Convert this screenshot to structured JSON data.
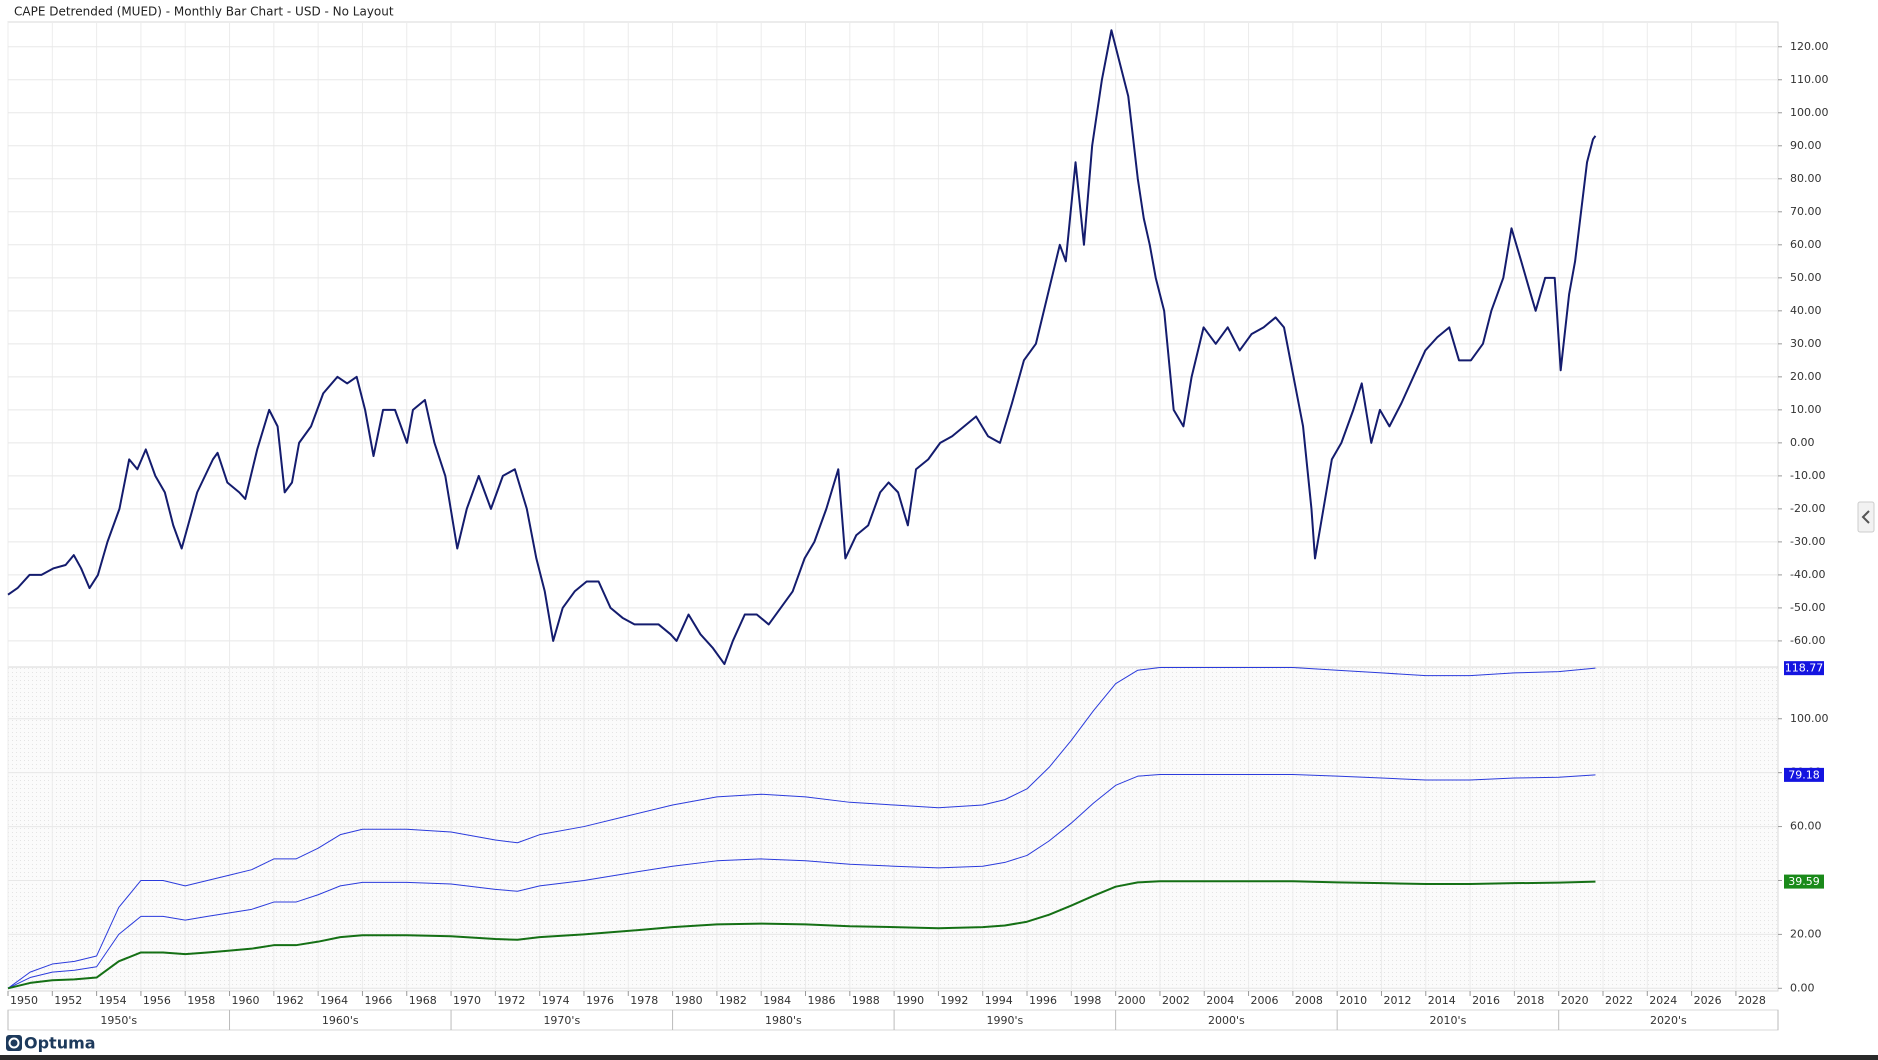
{
  "chart_data": [
    {
      "type": "line",
      "title": "CAPE Detrended (MUED) - Monthly Bar Chart - USD - No Layout",
      "xlim": [
        1950,
        2029.9
      ],
      "ylim": [
        -67.9,
        127.5
      ],
      "grid": true,
      "yticks": [
        {
          "value": -60,
          "label": "-60.00"
        },
        {
          "value": -50,
          "label": "-50.00"
        },
        {
          "value": -40,
          "label": "-40.00"
        },
        {
          "value": -30,
          "label": "-30.00"
        },
        {
          "value": -20,
          "label": "-20.00"
        },
        {
          "value": -10,
          "label": "-10.00"
        },
        {
          "value": 0,
          "label": "0.00"
        },
        {
          "value": 10,
          "label": "10.00"
        },
        {
          "value": 20,
          "label": "20.00"
        },
        {
          "value": 30,
          "label": "30.00"
        },
        {
          "value": 40,
          "label": "40.00"
        },
        {
          "value": 50,
          "label": "50.00"
        },
        {
          "value": 60,
          "label": "60.00"
        },
        {
          "value": 70,
          "label": "70.00"
        },
        {
          "value": 80,
          "label": "80.00"
        },
        {
          "value": 90,
          "label": "90.00"
        },
        {
          "value": 100,
          "label": "100.00"
        },
        {
          "value": 110,
          "label": "110.00"
        },
        {
          "value": 120,
          "label": "120.00"
        }
      ],
      "x": [
        1950.0,
        1950.43,
        1950.97,
        1951.51,
        1952.06,
        1952.6,
        1952.97,
        1953.3,
        1953.68,
        1954.06,
        1954.49,
        1955.03,
        1955.47,
        1955.84,
        1956.22,
        1956.65,
        1957.08,
        1957.46,
        1957.84,
        1958.54,
        1959.25,
        1959.46,
        1959.9,
        1960.44,
        1960.71,
        1961.25,
        1961.79,
        1962.17,
        1962.49,
        1962.82,
        1963.14,
        1963.68,
        1964.23,
        1964.87,
        1965.31,
        1965.74,
        1966.12,
        1966.5,
        1966.93,
        1967.47,
        1968.01,
        1968.28,
        1968.82,
        1969.25,
        1969.74,
        1970.28,
        1970.71,
        1971.25,
        1971.8,
        1972.34,
        1972.88,
        1973.42,
        1973.85,
        1974.23,
        1974.61,
        1975.04,
        1975.58,
        1976.12,
        1976.66,
        1977.2,
        1977.74,
        1978.28,
        1978.83,
        1979.37,
        1979.91,
        1980.18,
        1980.72,
        1981.26,
        1981.8,
        1982.34,
        1982.72,
        1983.26,
        1983.8,
        1984.34,
        1984.88,
        1985.42,
        1985.96,
        1986.4,
        1986.94,
        1987.48,
        1987.8,
        1988.29,
        1988.83,
        1989.37,
        1989.75,
        1990.18,
        1990.62,
        1990.99,
        1991.54,
        1992.08,
        1992.62,
        1993.16,
        1993.7,
        1994.24,
        1994.78,
        1995.32,
        1995.86,
        1996.4,
        1996.94,
        1997.48,
        1997.75,
        1998.19,
        1998.57,
        1998.94,
        1999.38,
        1999.81,
        2000.19,
        2000.57,
        2001.0,
        2001.27,
        2001.54,
        2001.81,
        2002.19,
        2002.62,
        2003.06,
        2003.43,
        2003.97,
        2004.52,
        2005.06,
        2005.6,
        2006.14,
        2006.68,
        2007.22,
        2007.6,
        2008.03,
        2008.46,
        2008.84,
        2009.0,
        2009.38,
        2009.76,
        2010.19,
        2010.73,
        2011.11,
        2011.54,
        2011.93,
        2012.36,
        2012.9,
        2013.44,
        2013.98,
        2014.52,
        2015.06,
        2015.5,
        2016.04,
        2016.58,
        2016.96,
        2017.5,
        2017.87,
        2018.31,
        2018.74,
        2018.96,
        2019.39,
        2019.82,
        2020.09,
        2020.47,
        2020.74,
        2021.01,
        2021.28,
        2021.55,
        2021.66
      ],
      "series": [
        {
          "color": "#141c6e",
          "values": [
            -46,
            -44,
            -40,
            -40,
            -38,
            -37,
            -34,
            -38,
            -44,
            -40,
            -30,
            -20,
            -5,
            -8,
            -2,
            -10,
            -15,
            -25,
            -32,
            -15,
            -5,
            -3,
            -12,
            -15,
            -17,
            -2,
            10,
            5,
            -15,
            -12,
            0,
            5,
            15,
            20,
            18,
            20,
            10,
            -4,
            10,
            10,
            0,
            10,
            13,
            0,
            -10,
            -32,
            -20,
            -10,
            -20,
            -10,
            -8,
            -20,
            -35,
            -45,
            -60,
            -50,
            -45,
            -42,
            -42,
            -50,
            -53,
            -55,
            -55,
            -55,
            -58,
            -60,
            -52,
            -58,
            -62,
            -67,
            -60,
            -52,
            -52,
            -55,
            -50,
            -45,
            -35,
            -30,
            -20,
            -8,
            -35,
            -28,
            -25,
            -15,
            -12,
            -15,
            -25,
            -8,
            -5,
            0,
            2,
            5,
            8,
            2,
            0,
            12,
            25,
            30,
            45,
            60,
            55,
            85,
            60,
            90,
            110,
            125,
            115,
            105,
            80,
            68,
            60,
            50,
            40,
            10,
            5,
            20,
            35,
            30,
            35,
            28,
            33,
            35,
            38,
            35,
            20,
            5,
            -20,
            -35,
            -20,
            -5,
            0,
            10,
            18,
            0,
            10,
            5,
            12,
            20,
            28,
            32,
            35,
            25,
            25,
            30,
            40,
            50,
            65,
            55,
            45,
            40,
            50,
            50,
            22,
            45,
            55,
            70,
            85,
            92,
            93
          ]
        }
      ]
    },
    {
      "type": "line",
      "xlim": [
        1950,
        2029.9
      ],
      "ylim": [
        -1,
        119.2
      ],
      "grid": true,
      "last_value_badges": true,
      "yticks": [
        {
          "value": 0,
          "label": "0.00"
        },
        {
          "value": 20,
          "label": "20.00"
        },
        {
          "value": 40,
          "label": "40.00"
        },
        {
          "value": 60,
          "label": "60.00"
        },
        {
          "value": 80,
          "label": "80.00"
        },
        {
          "value": 100,
          "label": "100.00"
        }
      ],
      "xticks": [
        1950,
        1952,
        1954,
        1956,
        1958,
        1960,
        1962,
        1964,
        1966,
        1968,
        1970,
        1972,
        1974,
        1976,
        1978,
        1980,
        1982,
        1984,
        1986,
        1988,
        1990,
        1992,
        1994,
        1996,
        1998,
        2000,
        2002,
        2004,
        2006,
        2008,
        2010,
        2012,
        2014,
        2016,
        2018,
        2020,
        2022,
        2024,
        2026,
        2028
      ],
      "decades": [
        "1950's",
        "1960's",
        "1970's",
        "1980's",
        "1990's",
        "2000's",
        "2010's",
        "2020's"
      ],
      "decade_edges": [
        1950,
        1960,
        1970,
        1980,
        1990,
        2000,
        2010,
        2020,
        2030
      ],
      "x": [
        1950,
        1951,
        1952,
        1953,
        1954,
        1955,
        1956,
        1957,
        1958,
        1959,
        1960,
        1961,
        1962,
        1963,
        1964,
        1965,
        1966,
        1968,
        1970,
        1972,
        1973,
        1974,
        1976,
        1978,
        1980,
        1982,
        1984,
        1986,
        1988,
        1990,
        1992,
        1994,
        1995,
        1996,
        1997,
        1998,
        1999,
        2000,
        2001,
        2002,
        2004,
        2006,
        2008,
        2010,
        2012,
        2014,
        2016,
        2018,
        2020,
        2021.66
      ],
      "series": [
        {
          "color": "#2b3bdc",
          "values": [
            0,
            6,
            9,
            10,
            12,
            30,
            40,
            40,
            38,
            40,
            42,
            44,
            48,
            48,
            52,
            57,
            59,
            59,
            58,
            55,
            54,
            57,
            60,
            64,
            68,
            71,
            72,
            71,
            69,
            68,
            67,
            68,
            70,
            74,
            82,
            92,
            103,
            113,
            118,
            119,
            119,
            119,
            119,
            118,
            117,
            116,
            116,
            117,
            117.5,
            118.77
          ]
        },
        {
          "color": "#2b3bdc",
          "values": [
            0,
            4,
            6,
            6.7,
            8,
            20,
            26.7,
            26.7,
            25.3,
            26.7,
            28,
            29.3,
            32,
            32,
            34.7,
            38,
            39.3,
            39.3,
            38.7,
            36.7,
            36,
            38,
            40,
            42.7,
            45.3,
            47.3,
            48,
            47.3,
            46,
            45.3,
            44.7,
            45.3,
            46.7,
            49.3,
            54.7,
            61.3,
            68.7,
            75.3,
            78.7,
            79.3,
            79.3,
            79.3,
            79.3,
            78.7,
            78,
            77.3,
            77.3,
            78,
            78.3,
            79.18
          ]
        },
        {
          "color": "#157015",
          "values": [
            0,
            2,
            3,
            3.3,
            4,
            10,
            13.3,
            13.3,
            12.7,
            13.3,
            14,
            14.7,
            16,
            16,
            17.3,
            19,
            19.7,
            19.7,
            19.3,
            18.3,
            18,
            19,
            20,
            21.3,
            22.7,
            23.7,
            24,
            23.7,
            23,
            22.7,
            22.3,
            22.7,
            23.3,
            24.7,
            27.3,
            30.7,
            34.3,
            37.7,
            39.3,
            39.7,
            39.7,
            39.7,
            39.7,
            39.3,
            39,
            38.7,
            38.7,
            39,
            39.2,
            39.59
          ]
        }
      ]
    }
  ],
  "footer": {
    "brand": "Optuma"
  }
}
